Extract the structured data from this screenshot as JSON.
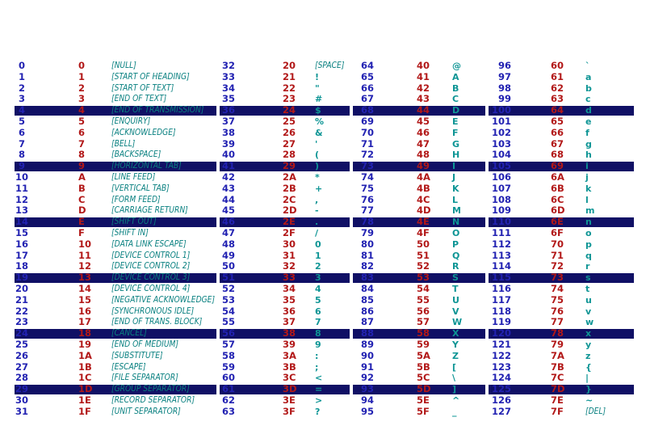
{
  "colors": {
    "background": "#FFFFFF",
    "decimal_color": "#2222B2",
    "hex_color": "#B21818",
    "control_name_color": "#098080",
    "glyph_color": "#0E9595",
    "highlight_band_color": "#101065"
  },
  "table": {
    "highlight_rows": [
      4,
      9,
      14,
      19,
      24,
      29
    ],
    "cell_format": [
      "dec",
      "hex",
      "char"
    ],
    "groups": [
      {
        "cells": [
          [
            "0",
            "0",
            "[NULL]"
          ],
          [
            "1",
            "1",
            "[START OF HEADING]"
          ],
          [
            "2",
            "2",
            "[START OF TEXT]"
          ],
          [
            "3",
            "3",
            "[END OF TEXT]"
          ],
          [
            "4",
            "4",
            "[END OF TRANSMISSION]"
          ],
          [
            "5",
            "5",
            "[ENQUIRY]"
          ],
          [
            "6",
            "6",
            "[ACKNOWLEDGE]"
          ],
          [
            "7",
            "7",
            "[BELL]"
          ],
          [
            "8",
            "8",
            "[BACKSPACE]"
          ],
          [
            "9",
            "9",
            "[HORIZONTAL TAB]"
          ],
          [
            "10",
            "A",
            "[LINE FEED]"
          ],
          [
            "11",
            "B",
            "[VERTICAL TAB]"
          ],
          [
            "12",
            "C",
            "[FORM FEED]"
          ],
          [
            "13",
            "D",
            "[CARRIAGE RETURN]"
          ],
          [
            "14",
            "E",
            "[SHIFT OUT]"
          ],
          [
            "15",
            "F",
            "[SHIFT IN]"
          ],
          [
            "16",
            "10",
            "[DATA LINK ESCAPE]"
          ],
          [
            "17",
            "11",
            "[DEVICE CONTROL 1]"
          ],
          [
            "18",
            "12",
            "[DEVICE CONTROL 2]"
          ],
          [
            "19",
            "13",
            "[DEVICE CONTROL 3]"
          ],
          [
            "20",
            "14",
            "[DEVICE CONTROL 4]"
          ],
          [
            "21",
            "15",
            "[NEGATIVE ACKNOWLEDGE]"
          ],
          [
            "22",
            "16",
            "[SYNCHRONOUS IDLE]"
          ],
          [
            "23",
            "17",
            "[END OF TRANS. BLOCK]"
          ],
          [
            "24",
            "18",
            "[CANCEL]"
          ],
          [
            "25",
            "19",
            "[END OF MEDIUM]"
          ],
          [
            "26",
            "1A",
            "[SUBSTITUTE]"
          ],
          [
            "27",
            "1B",
            "[ESCAPE]"
          ],
          [
            "28",
            "1C",
            "[FILE SEPARATOR]"
          ],
          [
            "29",
            "1D",
            "[GROUP SEPARATOR]"
          ],
          [
            "30",
            "1E",
            "[RECORD SEPARATOR]"
          ],
          [
            "31",
            "1F",
            "[UNIT SEPARATOR]"
          ]
        ]
      },
      {
        "cells": [
          [
            "32",
            "20",
            "[SPACE]"
          ],
          [
            "33",
            "21",
            "!"
          ],
          [
            "34",
            "22",
            "\""
          ],
          [
            "35",
            "23",
            "#"
          ],
          [
            "36",
            "24",
            "$"
          ],
          [
            "37",
            "25",
            "%"
          ],
          [
            "38",
            "26",
            "&"
          ],
          [
            "39",
            "27",
            "'"
          ],
          [
            "40",
            "28",
            "("
          ],
          [
            "41",
            "29",
            ")"
          ],
          [
            "42",
            "2A",
            "*"
          ],
          [
            "43",
            "2B",
            "+"
          ],
          [
            "44",
            "2C",
            ","
          ],
          [
            "45",
            "2D",
            "-"
          ],
          [
            "46",
            "2E",
            "."
          ],
          [
            "47",
            "2F",
            "/"
          ],
          [
            "48",
            "30",
            "0"
          ],
          [
            "49",
            "31",
            "1"
          ],
          [
            "50",
            "32",
            "2"
          ],
          [
            "51",
            "33",
            "3"
          ],
          [
            "52",
            "34",
            "4"
          ],
          [
            "53",
            "35",
            "5"
          ],
          [
            "54",
            "36",
            "6"
          ],
          [
            "55",
            "37",
            "7"
          ],
          [
            "56",
            "38",
            "8"
          ],
          [
            "57",
            "39",
            "9"
          ],
          [
            "58",
            "3A",
            ":"
          ],
          [
            "59",
            "3B",
            ";"
          ],
          [
            "60",
            "3C",
            "<"
          ],
          [
            "61",
            "3D",
            "="
          ],
          [
            "62",
            "3E",
            ">"
          ],
          [
            "63",
            "3F",
            "?"
          ]
        ]
      },
      {
        "cells": [
          [
            "64",
            "40",
            "@"
          ],
          [
            "65",
            "41",
            "A"
          ],
          [
            "66",
            "42",
            "B"
          ],
          [
            "67",
            "43",
            "C"
          ],
          [
            "68",
            "44",
            "D"
          ],
          [
            "69",
            "45",
            "E"
          ],
          [
            "70",
            "46",
            "F"
          ],
          [
            "71",
            "47",
            "G"
          ],
          [
            "72",
            "48",
            "H"
          ],
          [
            "73",
            "49",
            "I"
          ],
          [
            "74",
            "4A",
            "J"
          ],
          [
            "75",
            "4B",
            "K"
          ],
          [
            "76",
            "4C",
            "L"
          ],
          [
            "77",
            "4D",
            "M"
          ],
          [
            "78",
            "4E",
            "N"
          ],
          [
            "79",
            "4F",
            "O"
          ],
          [
            "80",
            "50",
            "P"
          ],
          [
            "81",
            "51",
            "Q"
          ],
          [
            "82",
            "52",
            "R"
          ],
          [
            "83",
            "53",
            "S"
          ],
          [
            "84",
            "54",
            "T"
          ],
          [
            "85",
            "55",
            "U"
          ],
          [
            "86",
            "56",
            "V"
          ],
          [
            "87",
            "57",
            "W"
          ],
          [
            "88",
            "58",
            "X"
          ],
          [
            "89",
            "59",
            "Y"
          ],
          [
            "90",
            "5A",
            "Z"
          ],
          [
            "91",
            "5B",
            "["
          ],
          [
            "92",
            "5C",
            "\\"
          ],
          [
            "93",
            "5D",
            "]"
          ],
          [
            "94",
            "5E",
            "^"
          ],
          [
            "95",
            "5F",
            "_"
          ]
        ]
      },
      {
        "cells": [
          [
            "96",
            "60",
            "`"
          ],
          [
            "97",
            "61",
            "a"
          ],
          [
            "98",
            "62",
            "b"
          ],
          [
            "99",
            "63",
            "c"
          ],
          [
            "100",
            "64",
            "d"
          ],
          [
            "101",
            "65",
            "e"
          ],
          [
            "102",
            "66",
            "f"
          ],
          [
            "103",
            "67",
            "g"
          ],
          [
            "104",
            "68",
            "h"
          ],
          [
            "105",
            "69",
            "i"
          ],
          [
            "106",
            "6A",
            "j"
          ],
          [
            "107",
            "6B",
            "k"
          ],
          [
            "108",
            "6C",
            "l"
          ],
          [
            "109",
            "6D",
            "m"
          ],
          [
            "110",
            "6E",
            "n"
          ],
          [
            "111",
            "6F",
            "o"
          ],
          [
            "112",
            "70",
            "p"
          ],
          [
            "113",
            "71",
            "q"
          ],
          [
            "114",
            "72",
            "r"
          ],
          [
            "115",
            "73",
            "s"
          ],
          [
            "116",
            "74",
            "t"
          ],
          [
            "117",
            "75",
            "u"
          ],
          [
            "118",
            "76",
            "v"
          ],
          [
            "119",
            "77",
            "w"
          ],
          [
            "120",
            "78",
            "x"
          ],
          [
            "121",
            "79",
            "y"
          ],
          [
            "122",
            "7A",
            "z"
          ],
          [
            "123",
            "7B",
            "{"
          ],
          [
            "124",
            "7C",
            "|"
          ],
          [
            "125",
            "7D",
            "}"
          ],
          [
            "126",
            "7E",
            "~"
          ],
          [
            "127",
            "7F",
            "[DEL]"
          ]
        ]
      }
    ]
  }
}
